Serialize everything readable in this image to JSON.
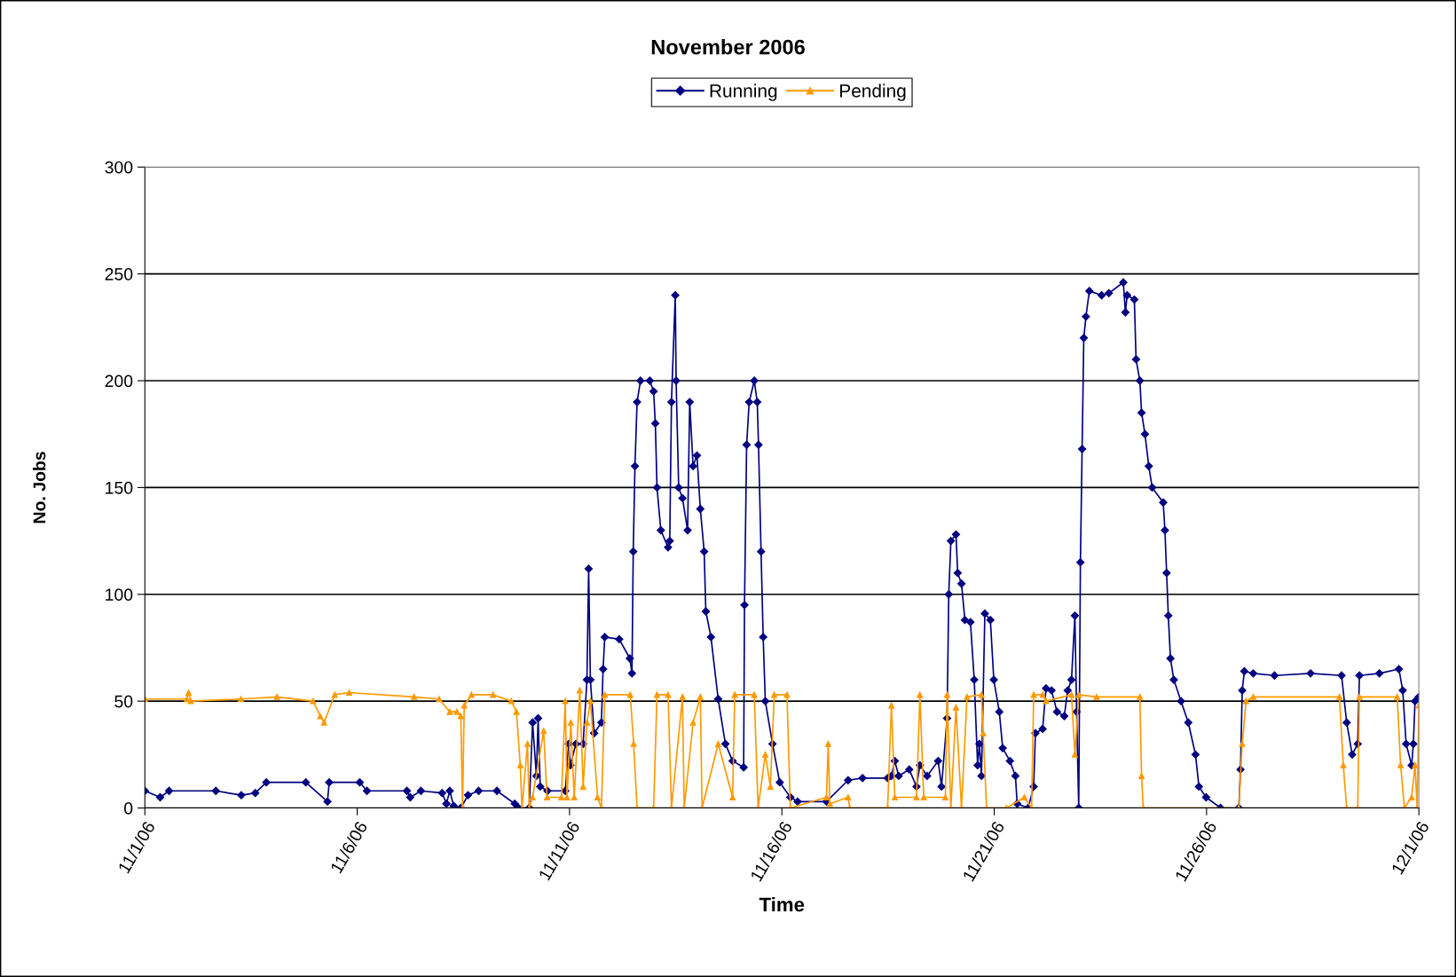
{
  "chart_data": {
    "type": "line",
    "title": "November 2006",
    "xlabel": "Time",
    "ylabel": "No. Jobs",
    "xlim": [
      "2006-11-01",
      "2006-12-01"
    ],
    "xticks": [
      {
        "value": "2006-11-01",
        "label": "11/1/06"
      },
      {
        "value": "2006-11-06",
        "label": "11/6/06"
      },
      {
        "value": "2006-11-11",
        "label": "11/11/06"
      },
      {
        "value": "2006-11-16",
        "label": "11/16/06"
      },
      {
        "value": "2006-11-21",
        "label": "11/21/06"
      },
      {
        "value": "2006-11-26",
        "label": "11/26/06"
      },
      {
        "value": "2006-12-01",
        "label": "12/1/06"
      }
    ],
    "ylim": [
      0,
      300
    ],
    "yticks": [
      0,
      50,
      100,
      150,
      200,
      250,
      300
    ],
    "grid": "y",
    "legend": "top",
    "line_style": "solid",
    "series": [
      {
        "name": "Running",
        "color": "#000080",
        "marker": "diamond",
        "x": [
          "2006-11-01T00:00",
          "2006-11-01T08:38",
          "2006-11-01T13:41",
          "2006-11-02T16:05",
          "2006-11-03T06:29",
          "2006-11-03T14:24",
          "2006-11-03T20:38",
          "2006-11-04T18:58",
          "2006-11-05T07:12",
          "2006-11-05T08:10",
          "2006-11-06T01:26",
          "2006-11-06T05:31",
          "2006-11-07T04:05",
          "2006-11-07T06:00",
          "2006-11-07T12:00",
          "2006-11-08T00:00",
          "2006-11-08T02:24",
          "2006-11-08T04:19",
          "2006-11-08T06:29",
          "2006-11-08T10:34",
          "2006-11-08T14:38",
          "2006-11-08T20:38",
          "2006-11-09T06:58",
          "2006-11-09T17:02",
          "2006-11-09T19:12",
          "2006-11-10T01:12",
          "2006-11-10T03:07",
          "2006-11-10T05:17",
          "2006-11-10T06:14",
          "2006-11-10T07:26",
          "2006-11-10T11:31",
          "2006-11-10T21:36",
          "2006-11-10T23:31",
          "2006-11-11T00:29",
          "2006-11-11T03:36",
          "2006-11-11T07:41",
          "2006-11-11T09:50",
          "2006-11-11T10:48",
          "2006-11-11T11:46",
          "2006-11-11T13:55",
          "2006-11-11T18:00",
          "2006-11-11T18:58",
          "2006-11-11T19:55",
          "2006-11-12T04:05",
          "2006-11-12T10:05",
          "2006-11-12T11:17",
          "2006-11-12T12:00",
          "2006-11-12T12:58",
          "2006-11-12T14:10",
          "2006-11-12T16:05",
          "2006-11-12T21:22",
          "2006-11-12T23:31",
          "2006-11-13T00:29",
          "2006-11-13T01:26",
          "2006-11-13T03:36",
          "2006-11-13T07:41",
          "2006-11-13T08:38",
          "2006-11-13T09:36",
          "2006-11-13T11:46",
          "2006-11-13T12:14",
          "2006-11-13T13:41",
          "2006-11-13T15:50",
          "2006-11-13T18:43",
          "2006-11-13T19:55",
          "2006-11-13T21:50",
          "2006-11-14T00:00",
          "2006-11-14T01:55",
          "2006-11-14T04:05",
          "2006-11-14T05:02",
          "2006-11-14T07:55",
          "2006-11-14T12:00",
          "2006-11-14T16:05",
          "2006-11-14T20:10",
          "2006-11-15T02:24",
          "2006-11-15T02:53",
          "2006-11-15T04:05",
          "2006-11-15T05:31",
          "2006-11-15T08:24",
          "2006-11-15T10:05",
          "2006-11-15T10:48",
          "2006-11-15T12:14",
          "2006-11-15T13:26",
          "2006-11-15T14:38",
          "2006-11-15T18:43",
          "2006-11-15T22:48",
          "2006-11-16T04:48",
          "2006-11-16T08:53",
          "2006-11-17T01:12",
          "2006-11-17T13:26",
          "2006-11-17T21:36",
          "2006-11-18T11:46",
          "2006-11-18T13:55",
          "2006-11-18T15:50",
          "2006-11-18T18:00",
          "2006-11-19T00:00",
          "2006-11-19T04:05",
          "2006-11-19T06:00",
          "2006-11-19T10:05",
          "2006-11-19T16:19",
          "2006-11-19T18:14",
          "2006-11-19T21:22",
          "2006-11-19T22:19",
          "2006-11-19T23:31",
          "2006-11-20T02:24",
          "2006-11-20T03:22",
          "2006-11-20T05:31",
          "2006-11-20T07:26",
          "2006-11-20T10:34",
          "2006-11-20T12:43",
          "2006-11-20T14:38",
          "2006-11-20T15:36",
          "2006-11-20T16:48",
          "2006-11-20T18:43",
          "2006-11-20T21:50",
          "2006-11-20T23:46",
          "2006-11-21T02:53",
          "2006-11-21T04:48",
          "2006-11-21T08:53",
          "2006-11-21T12:00",
          "2006-11-21T12:58",
          "2006-11-21T19:12",
          "2006-11-21T22:19",
          "2006-11-21T23:17",
          "2006-11-22T03:22",
          "2006-11-22T05:17",
          "2006-11-22T08:24",
          "2006-11-22T11:31",
          "2006-11-22T15:36",
          "2006-11-22T17:31",
          "2006-11-22T19:41",
          "2006-11-22T21:36",
          "2006-11-22T22:34",
          "2006-11-22T23:46",
          "2006-11-23T00:43",
          "2006-11-23T01:41",
          "2006-11-23T02:38",
          "2006-11-23T03:50",
          "2006-11-23T05:46",
          "2006-11-23T12:43",
          "2006-11-23T16:48",
          "2006-11-24T00:58",
          "2006-11-24T02:10",
          "2006-11-24T03:07",
          "2006-11-24T07:12",
          "2006-11-24T08:10",
          "2006-11-24T10:19",
          "2006-11-24T11:17",
          "2006-11-24T13:12",
          "2006-11-24T15:22",
          "2006-11-24T17:17",
          "2006-11-24T23:31",
          "2006-11-25T00:29",
          "2006-11-25T01:26",
          "2006-11-25T02:24",
          "2006-11-25T03:36",
          "2006-11-25T05:31",
          "2006-11-25T09:36",
          "2006-11-25T13:41",
          "2006-11-25T17:46",
          "2006-11-25T19:41",
          "2006-11-25T23:46",
          "2006-11-26T07:55",
          "2006-11-26T18:14",
          "2006-11-26T19:12",
          "2006-11-26T20:10",
          "2006-11-26T21:22",
          "2006-11-27T02:24",
          "2006-11-27T14:24",
          "2006-11-28T10:48",
          "2006-11-29T04:19",
          "2006-11-29T07:12",
          "2006-11-29T10:19",
          "2006-11-29T13:26",
          "2006-11-29T14:24",
          "2006-11-30T01:41",
          "2006-11-30T12:43",
          "2006-11-30T14:53",
          "2006-11-30T16:48",
          "2006-11-30T19:55",
          "2006-11-30T20:53",
          "2006-11-30T21:50",
          "2006-12-01T00:00"
        ],
        "values": [
          8,
          5,
          8,
          8,
          6,
          7,
          12,
          12,
          3,
          12,
          12,
          8,
          8,
          5,
          8,
          7,
          2,
          8,
          1,
          0,
          6,
          8,
          8,
          2,
          0,
          0,
          40,
          15,
          42,
          10,
          8,
          8,
          30,
          20,
          30,
          30,
          60,
          112,
          60,
          35,
          40,
          65,
          80,
          79,
          70,
          63,
          120,
          160,
          190,
          200,
          200,
          195,
          180,
          150,
          130,
          122,
          125,
          190,
          240,
          200,
          150,
          145,
          130,
          190,
          160,
          165,
          140,
          120,
          92,
          80,
          51,
          30,
          22,
          19,
          95,
          170,
          190,
          200,
          190,
          170,
          120,
          80,
          50,
          30,
          12,
          5,
          3,
          3,
          13,
          14,
          14,
          15,
          22,
          15,
          18,
          10,
          20,
          15,
          22,
          10,
          42,
          100,
          125,
          128,
          110,
          105,
          88,
          87,
          60,
          20,
          30,
          15,
          91,
          88,
          60,
          45,
          28,
          22,
          15,
          2,
          0,
          10,
          35,
          37,
          56,
          55,
          45,
          43,
          55,
          60,
          90,
          45,
          0,
          115,
          168,
          220,
          230,
          242,
          240,
          241,
          246,
          232,
          240,
          238,
          210,
          200,
          185,
          175,
          160,
          150,
          143,
          130,
          110,
          90,
          70,
          60,
          50,
          40,
          25,
          10,
          5,
          0,
          0,
          18,
          55,
          64,
          63,
          62,
          63,
          62,
          40,
          25,
          30,
          62,
          63,
          65,
          55,
          30,
          20,
          30,
          50,
          52
        ]
      },
      {
        "name": "Pending",
        "color": "#ff9900",
        "marker": "triangle",
        "x": [
          "2006-11-01T00:00",
          "2006-11-01T23:46",
          "2006-11-02T00:43",
          "2006-11-02T01:55",
          "2006-11-03T06:14",
          "2006-11-04T02:38",
          "2006-11-04T23:02",
          "2006-11-05T03:07",
          "2006-11-05T05:17",
          "2006-11-05T11:17",
          "2006-11-05T19:26",
          "2006-11-07T08:10",
          "2006-11-07T22:19",
          "2006-11-08T04:19",
          "2006-11-08T08:24",
          "2006-11-08T10:34",
          "2006-11-08T11:31",
          "2006-11-08T12:29",
          "2006-11-08T16:34",
          "2006-11-09T04:48",
          "2006-11-09T15:07",
          "2006-11-09T18:00",
          "2006-11-09T20:10",
          "2006-11-09T21:07",
          "2006-11-10T00:14",
          "2006-11-10T01:12",
          "2006-11-10T03:07",
          "2006-11-10T09:22",
          "2006-11-10T11:17",
          "2006-11-10T19:26",
          "2006-11-10T21:36",
          "2006-11-10T22:34",
          "2006-11-11T00:43",
          "2006-11-11T02:38",
          "2006-11-11T05:46",
          "2006-11-11T07:41",
          "2006-11-11T09:50",
          "2006-11-11T11:46",
          "2006-11-11T15:50",
          "2006-11-11T18:00",
          "2006-11-11T19:55",
          "2006-11-12T10:19",
          "2006-11-12T12:14",
          "2006-11-12T14:10",
          "2006-11-12T23:31",
          "2006-11-13T01:26",
          "2006-11-13T07:41",
          "2006-11-13T09:36",
          "2006-11-13T15:50",
          "2006-11-13T16:48",
          "2006-11-13T21:50",
          "2006-11-14T01:55",
          "2006-11-14T02:53",
          "2006-11-14T12:00",
          "2006-11-14T20:10",
          "2006-11-14T21:22",
          "2006-11-15T08:24",
          "2006-11-15T10:34",
          "2006-11-15T14:38",
          "2006-11-15T17:31",
          "2006-11-15T19:41",
          "2006-11-16T02:53",
          "2006-11-16T04:48",
          "2006-11-17T01:12",
          "2006-11-17T02:10",
          "2006-11-17T03:07",
          "2006-11-17T13:26",
          "2006-11-17T14:24",
          "2006-11-18T11:46",
          "2006-11-18T13:55",
          "2006-11-18T15:50",
          "2006-11-19T04:05",
          "2006-11-19T06:00",
          "2006-11-19T08:10",
          "2006-11-19T20:24",
          "2006-11-19T21:22",
          "2006-11-19T23:31",
          "2006-11-20T02:24",
          "2006-11-20T05:31",
          "2006-11-20T08:38",
          "2006-11-20T16:48",
          "2006-11-20T17:46",
          "2006-11-20T19:41",
          "2006-11-21T06:58",
          "2006-11-21T17:02",
          "2006-11-21T21:07",
          "2006-11-21T22:19",
          "2006-11-22T03:22",
          "2006-11-22T05:17",
          "2006-11-22T19:41",
          "2006-11-22T21:36",
          "2006-11-22T23:46",
          "2006-11-23T09:50",
          "2006-11-24T10:19",
          "2006-11-24T11:17",
          "2006-11-24T12:14",
          "2006-11-26T18:14",
          "2006-11-26T20:10",
          "2006-11-26T22:19",
          "2006-11-27T02:24",
          "2006-11-29T03:07",
          "2006-11-29T05:17",
          "2006-11-29T07:12",
          "2006-11-29T13:26",
          "2006-11-29T14:24",
          "2006-11-30T11:46",
          "2006-11-30T13:41",
          "2006-11-30T15:50",
          "2006-11-30T19:55",
          "2006-11-30T21:50",
          "2006-11-30T23:02",
          "2006-12-01T00:00"
        ],
        "values": [
          51,
          51,
          54,
          50,
          51,
          52,
          50,
          43,
          40,
          53,
          54,
          52,
          51,
          45,
          45,
          43,
          0,
          48,
          53,
          53,
          50,
          45,
          20,
          0,
          30,
          0,
          5,
          36,
          5,
          5,
          50,
          5,
          40,
          5,
          55,
          10,
          40,
          50,
          5,
          0,
          53,
          53,
          30,
          0,
          0,
          53,
          53,
          0,
          52,
          0,
          40,
          52,
          0,
          30,
          5,
          53,
          53,
          0,
          25,
          10,
          53,
          53,
          0,
          5,
          30,
          2,
          5,
          0,
          0,
          48,
          5,
          5,
          53,
          5,
          5,
          53,
          0,
          47,
          0,
          52,
          53,
          35,
          0,
          0,
          5,
          0,
          53,
          53,
          50,
          53,
          25,
          53,
          52,
          52,
          15,
          0,
          0,
          30,
          50,
          52,
          52,
          20,
          0,
          0,
          52,
          52,
          20,
          0,
          5,
          20,
          0,
          48
        ]
      }
    ]
  }
}
